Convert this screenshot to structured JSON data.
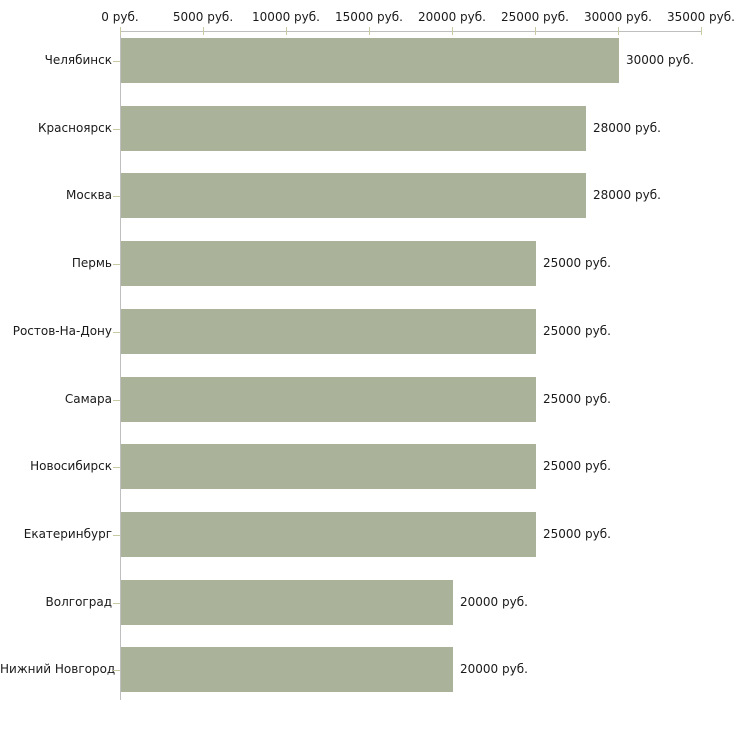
{
  "chart_data": {
    "type": "bar",
    "orientation": "horizontal",
    "title": "",
    "categories": [
      "Челябинск",
      "Красноярск",
      "Москва",
      "Пермь",
      "Ростов-На-Дону",
      "Самара",
      "Новосибирск",
      "Екатеринбург",
      "Волгоград",
      "Нижний Новгород"
    ],
    "values": [
      30000,
      28000,
      28000,
      25000,
      25000,
      25000,
      25000,
      25000,
      20000,
      20000
    ],
    "value_labels": [
      "30000 руб.",
      "28000 руб.",
      "28000 руб.",
      "25000 руб.",
      "25000 руб.",
      "25000 руб.",
      "25000 руб.",
      "25000 руб.",
      "20000 руб.",
      "20000 руб."
    ],
    "x_axis": {
      "tick_values": [
        0,
        5000,
        10000,
        15000,
        20000,
        25000,
        30000,
        35000
      ],
      "tick_labels": [
        "0 руб.",
        "5000 руб.",
        "10000 руб.",
        "15000 руб.",
        "20000 руб.",
        "25000 руб.",
        "30000 руб.",
        "35000 руб."
      ],
      "unit": "руб."
    },
    "xlim": [
      0,
      35000
    ],
    "xlabel": "",
    "ylabel": "",
    "grid": false,
    "legend": false,
    "colors": {
      "bar": "#abb29a",
      "axis_line": "#bfbfbf",
      "tick_mark": "#c9c9a2",
      "text": "#1a1a1a",
      "background": "#ffffff"
    }
  }
}
